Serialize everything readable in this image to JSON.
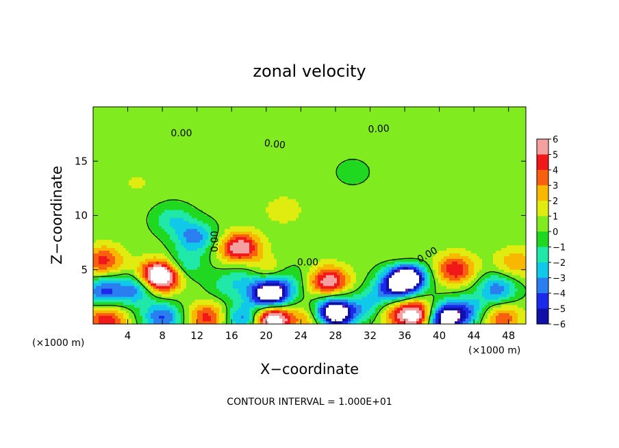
{
  "chart_data": {
    "type": "heatmap",
    "title": "zonal velocity",
    "xlabel": "X−coordinate",
    "ylabel": "Z−coordinate",
    "x_unit": "(×1000 m)",
    "y_unit": "(×1000 m)",
    "xlim": [
      0,
      50
    ],
    "ylim": [
      0,
      20
    ],
    "x_ticks": [
      4,
      8,
      12,
      16,
      20,
      24,
      28,
      32,
      36,
      40,
      44,
      48
    ],
    "y_ticks": [
      5,
      10,
      15
    ],
    "colorbar": {
      "levels": [
        6,
        5,
        4,
        3,
        2,
        1,
        0,
        -1,
        -2,
        -3,
        -4,
        -5,
        -6
      ],
      "labels": [
        "6",
        "5",
        "4",
        "3",
        "2",
        "1",
        "0",
        "−1",
        "−2",
        "−3",
        "−4",
        "−5",
        "−6"
      ]
    },
    "background_value": 0.4,
    "features": [
      {
        "x": 7.7,
        "z": 4.4,
        "v": 9.0
      },
      {
        "x": 5.0,
        "z": 3.2,
        "v": -4.0
      },
      {
        "x": 1.2,
        "z": 3.0,
        "v": -4.5
      },
      {
        "x": 1.2,
        "z": 5.8,
        "v": 4.0
      },
      {
        "x": 8.0,
        "z": 0.6,
        "v": -4.5
      },
      {
        "x": 1.5,
        "z": 0.3,
        "v": 4.5
      },
      {
        "x": 10.5,
        "z": 5.4,
        "v": -2.5
      },
      {
        "x": 11.8,
        "z": 8.0,
        "v": -3.8
      },
      {
        "x": 9.2,
        "z": 9.6,
        "v": -2.2
      },
      {
        "x": 13.2,
        "z": 0.6,
        "v": 4.0
      },
      {
        "x": 17.0,
        "z": 7.0,
        "v": 5.8
      },
      {
        "x": 15.5,
        "z": 3.5,
        "v": -1.8
      },
      {
        "x": 20.5,
        "z": 2.8,
        "v": -10.0
      },
      {
        "x": 18.2,
        "z": 4.5,
        "v": -2.6
      },
      {
        "x": 19.6,
        "z": 4.6,
        "v": 3.0
      },
      {
        "x": 20.6,
        "z": 0.5,
        "v": 8.0
      },
      {
        "x": 17.5,
        "z": 0.5,
        "v": -4.5
      },
      {
        "x": 23.2,
        "z": 4.2,
        "v": -1.2
      },
      {
        "x": 27.2,
        "z": 3.9,
        "v": 5.5
      },
      {
        "x": 27.8,
        "z": 1.0,
        "v": -10.0
      },
      {
        "x": 25.5,
        "z": 0.4,
        "v": 3.0
      },
      {
        "x": 32.0,
        "z": 1.6,
        "v": -2.8
      },
      {
        "x": 36.2,
        "z": 4.3,
        "v": -10.0
      },
      {
        "x": 34.5,
        "z": 3.0,
        "v": -4.0
      },
      {
        "x": 37.4,
        "z": 0.8,
        "v": 7.0
      },
      {
        "x": 34.5,
        "z": 1.2,
        "v": 3.0
      },
      {
        "x": 41.8,
        "z": 5.0,
        "v": 4.5
      },
      {
        "x": 40.5,
        "z": 0.5,
        "v": -8.0
      },
      {
        "x": 43.2,
        "z": 1.2,
        "v": -3.5
      },
      {
        "x": 46.7,
        "z": 3.2,
        "v": -4.0
      },
      {
        "x": 48.8,
        "z": 5.6,
        "v": 2.5
      },
      {
        "x": 47.2,
        "z": 0.5,
        "v": 3.5
      },
      {
        "x": 36.0,
        "z": 5.6,
        "v": 2.0
      },
      {
        "x": 22.0,
        "z": 10.5,
        "v": 1.2
      },
      {
        "x": 30.0,
        "z": 14.0,
        "v": -0.8
      },
      {
        "x": 5.0,
        "z": 13.0,
        "v": 0.7
      }
    ],
    "contour_labels": [
      {
        "text": "0.00",
        "x": 10.2,
        "z": 17.6,
        "angle": 0
      },
      {
        "text": "0.00",
        "x": 21.0,
        "z": 16.6,
        "angle": 7
      },
      {
        "text": "0.00",
        "x": 33.0,
        "z": 18.0,
        "angle": -3
      },
      {
        "text": "0.00",
        "x": 14.0,
        "z": 7.6,
        "angle": -90
      },
      {
        "text": "0.00",
        "x": 24.8,
        "z": 5.7,
        "angle": 0
      },
      {
        "text": "0.00",
        "x": 38.6,
        "z": 6.4,
        "angle": -30
      }
    ],
    "contour_value": "0.00",
    "grid": false
  },
  "footer": {
    "contour_interval": "CONTOUR INTERVAL = 1.000E+01"
  }
}
